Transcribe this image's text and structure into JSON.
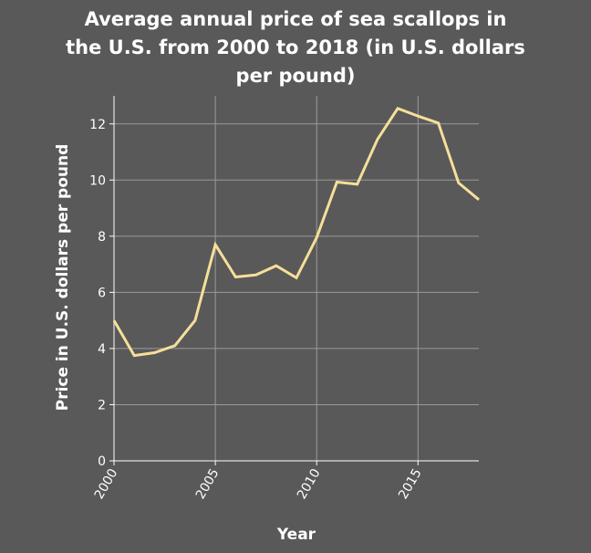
{
  "chart_data": {
    "type": "line",
    "title_lines": [
      "Average annual price of sea scallops in",
      "the U.S. from 2000 to 2018 (in U.S. dollars",
      "per pound)"
    ],
    "xlabel": "Year",
    "ylabel": "Price in U.S. dollars per pound",
    "xlim": [
      2000,
      2018
    ],
    "ylim": [
      0,
      13
    ],
    "x_ticks": [
      "2000",
      "2005",
      "2010",
      "2015"
    ],
    "y_ticks": [
      "0",
      "2",
      "4",
      "6",
      "8",
      "10",
      "12"
    ],
    "grid": true,
    "line_color": "#f5df9a",
    "background_color": "#595959",
    "grid_color": "#9a9a9a",
    "series": [
      {
        "x": [
          2000,
          2001,
          2002,
          2003,
          2004,
          2005,
          2006,
          2007,
          2008,
          2009,
          2010,
          2011,
          2012,
          2013,
          2014,
          2015,
          2016,
          2017,
          2018
        ],
        "values": [
          5.0,
          3.75,
          3.85,
          4.1,
          5.0,
          7.7,
          6.55,
          6.62,
          6.95,
          6.52,
          7.95,
          9.93,
          9.85,
          11.45,
          12.55,
          12.28,
          12.03,
          9.9,
          9.3
        ]
      }
    ]
  }
}
